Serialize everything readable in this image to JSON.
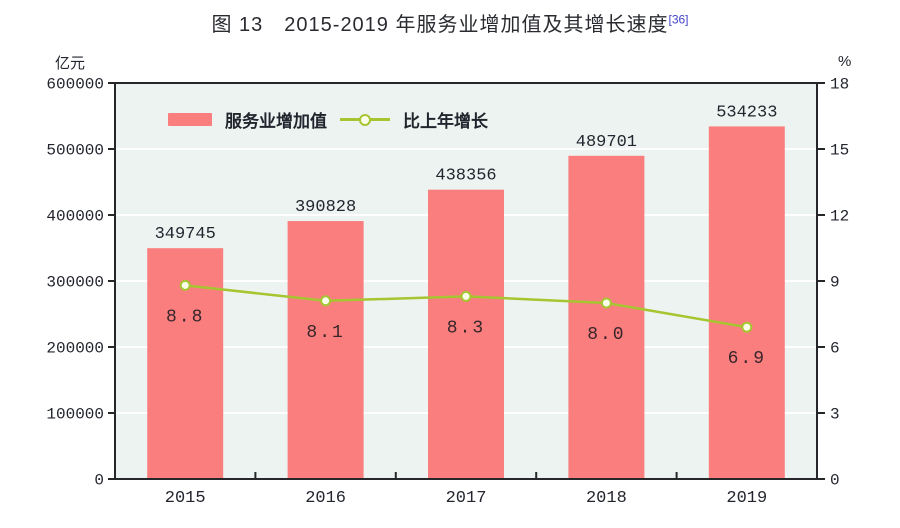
{
  "title": {
    "text": "图 13　2015-2019 年服务业增加值及其增长速度",
    "footnote_ref": "[36]"
  },
  "legend": {
    "bar_label": "服务业增加值",
    "line_label": "比上年增长"
  },
  "colors": {
    "bar": "#fa7e7e",
    "line": "#a5c531",
    "marker_fill": "#fdfeea",
    "plot_background": "#edf3f1",
    "gridline": "#ffffff",
    "axis": "#26272b",
    "text": "#23252e",
    "rate_label": "#38262a",
    "footnote": "#4343c8"
  },
  "chart_data": {
    "type": "bar",
    "title": "图 13　2015-2019 年服务业增加值及其增长速度",
    "footnote_ref": "[36]",
    "categories": [
      "2015",
      "2016",
      "2017",
      "2018",
      "2019"
    ],
    "series": [
      {
        "name": "服务业增加值",
        "type": "bar",
        "axis": "left",
        "values": [
          349745,
          390828,
          438356,
          489701,
          534233
        ],
        "labels": [
          "349745",
          "390828",
          "438356",
          "489701",
          "534233"
        ],
        "color": "#fa7e7e"
      },
      {
        "name": "比上年增长",
        "type": "line",
        "axis": "right",
        "values": [
          8.8,
          8.1,
          8.3,
          8.0,
          6.9
        ],
        "labels": [
          "8.8",
          "8.1",
          "8.3",
          "8.0",
          "6.9"
        ],
        "color": "#a5c531"
      }
    ],
    "left_axis": {
      "unit": "亿元",
      "min": 0,
      "max": 600000,
      "step": 100000,
      "tick_labels": [
        "600000",
        "500000",
        "400000",
        "300000",
        "200000",
        "100000",
        "0"
      ]
    },
    "right_axis": {
      "unit": "%",
      "min": 0,
      "max": 18,
      "step": 3,
      "tick_labels": [
        "18",
        "15",
        "12",
        "9",
        "6",
        "3",
        "0"
      ]
    },
    "grid": true,
    "legend_position": "top-left-inside"
  }
}
